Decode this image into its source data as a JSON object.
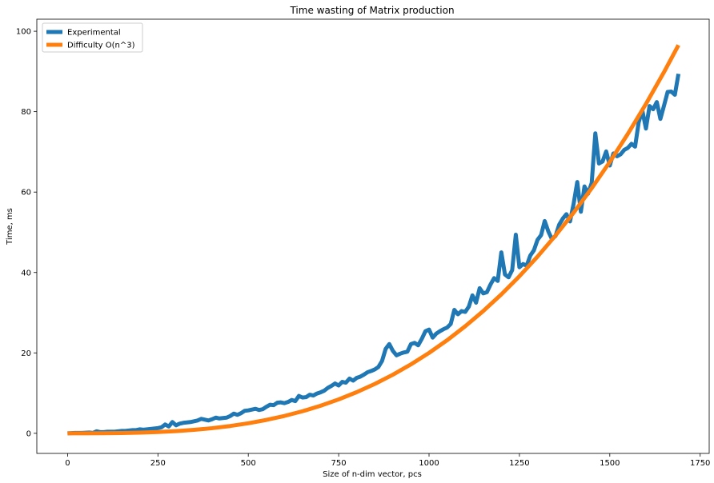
{
  "chart_data": {
    "type": "line",
    "title": "Time wasting of Matrix production",
    "xlabel": "Size of n-dim vector, pcs",
    "ylabel": "Time, ms",
    "xlim": [
      -85,
      1775
    ],
    "ylim": [
      -5,
      103
    ],
    "xticks": [
      0,
      250,
      500,
      750,
      1000,
      1250,
      1500,
      1750
    ],
    "yticks": [
      0,
      20,
      40,
      60,
      80,
      100
    ],
    "grid": false,
    "legend_position": "top-left",
    "series": [
      {
        "name": "Experimental",
        "color": "#1f77b4",
        "x": [
          0,
          20,
          40,
          60,
          70,
          80,
          90,
          100,
          110,
          120,
          130,
          140,
          150,
          160,
          170,
          180,
          190,
          200,
          210,
          220,
          230,
          240,
          250,
          260,
          270,
          280,
          290,
          300,
          310,
          320,
          330,
          340,
          350,
          360,
          370,
          380,
          390,
          400,
          410,
          420,
          430,
          440,
          450,
          460,
          470,
          480,
          490,
          500,
          510,
          520,
          530,
          540,
          550,
          560,
          570,
          580,
          590,
          600,
          610,
          620,
          630,
          640,
          650,
          660,
          670,
          680,
          690,
          700,
          710,
          720,
          730,
          740,
          750,
          760,
          770,
          780,
          790,
          800,
          810,
          820,
          830,
          840,
          850,
          860,
          870,
          880,
          890,
          900,
          910,
          920,
          930,
          940,
          950,
          960,
          970,
          980,
          990,
          1000,
          1010,
          1020,
          1030,
          1040,
          1050,
          1060,
          1070,
          1080,
          1090,
          1100,
          1110,
          1120,
          1130,
          1140,
          1150,
          1160,
          1170,
          1180,
          1190,
          1200,
          1210,
          1220,
          1230,
          1240,
          1250,
          1260,
          1270,
          1280,
          1290,
          1300,
          1310,
          1320,
          1330,
          1340,
          1350,
          1360,
          1370,
          1380,
          1390,
          1400,
          1410,
          1420,
          1430,
          1440,
          1450,
          1460,
          1470,
          1480,
          1490,
          1500,
          1510,
          1520,
          1530,
          1540,
          1550,
          1560,
          1570,
          1580,
          1590,
          1600,
          1610,
          1620,
          1630,
          1640,
          1650,
          1660,
          1670,
          1680,
          1690
        ],
        "y": [
          0.0,
          0.1,
          0.1,
          0.2,
          0.1,
          0.5,
          0.3,
          0.3,
          0.4,
          0.4,
          0.4,
          0.5,
          0.6,
          0.6,
          0.7,
          0.8,
          0.8,
          1.0,
          0.9,
          1.0,
          1.1,
          1.2,
          1.3,
          1.5,
          2.2,
          1.7,
          2.8,
          2.0,
          2.4,
          2.6,
          2.7,
          2.8,
          3.0,
          3.2,
          3.6,
          3.4,
          3.2,
          3.5,
          3.9,
          3.7,
          3.8,
          3.9,
          4.3,
          4.9,
          4.6,
          5.0,
          5.6,
          5.7,
          5.9,
          6.1,
          5.8,
          6.0,
          6.6,
          7.1,
          7.0,
          7.6,
          7.7,
          7.5,
          7.8,
          8.3,
          8.0,
          9.3,
          8.9,
          9.0,
          9.6,
          9.4,
          9.9,
          10.2,
          10.6,
          11.3,
          11.8,
          12.4,
          11.9,
          12.8,
          12.6,
          13.6,
          13.1,
          13.8,
          14.1,
          14.6,
          15.2,
          15.5,
          15.9,
          16.5,
          18.0,
          21.0,
          22.2,
          20.5,
          19.4,
          19.8,
          20.1,
          20.3,
          22.2,
          22.5,
          21.9,
          23.5,
          25.4,
          25.8,
          23.8,
          24.8,
          25.4,
          25.9,
          26.3,
          27.2,
          30.7,
          29.6,
          30.4,
          30.2,
          31.5,
          34.3,
          32.5,
          36.1,
          34.8,
          35.1,
          37.0,
          38.6,
          37.9,
          45.0,
          39.5,
          38.8,
          40.6,
          49.4,
          41.3,
          42.1,
          41.7,
          44.2,
          45.5,
          48.1,
          49.3,
          52.8,
          50.2,
          48.3,
          49.1,
          51.9,
          53.4,
          54.5,
          52.7,
          57.1,
          62.5,
          55.1,
          61.4,
          59.6,
          62.3,
          74.6,
          67.1,
          67.6,
          70.1,
          66.6,
          69.6,
          68.9,
          69.4,
          70.5,
          71.0,
          72.0,
          71.3,
          77.4,
          80.3,
          75.8,
          81.4,
          80.6,
          82.4,
          78.2,
          81.5,
          84.9,
          85.0,
          84.2,
          89.4
        ]
      },
      {
        "name": "Difficulty O(n^3)",
        "color": "#ff7f0e",
        "x": [
          0,
          50,
          100,
          150,
          200,
          250,
          300,
          350,
          400,
          450,
          500,
          550,
          600,
          650,
          700,
          750,
          800,
          850,
          900,
          950,
          1000,
          1050,
          1100,
          1150,
          1200,
          1250,
          1300,
          1350,
          1400,
          1450,
          1500,
          1550,
          1600,
          1650,
          1690
        ],
        "y": [
          0.0,
          0.002,
          0.02,
          0.07,
          0.16,
          0.31,
          0.54,
          0.86,
          1.28,
          1.82,
          2.5,
          3.33,
          4.32,
          5.49,
          6.86,
          8.44,
          10.24,
          12.28,
          14.58,
          17.15,
          20.0,
          23.15,
          26.62,
          30.42,
          34.56,
          39.06,
          43.94,
          49.21,
          54.88,
          60.97,
          67.5,
          74.48,
          81.92,
          89.84,
          96.54
        ]
      }
    ]
  }
}
